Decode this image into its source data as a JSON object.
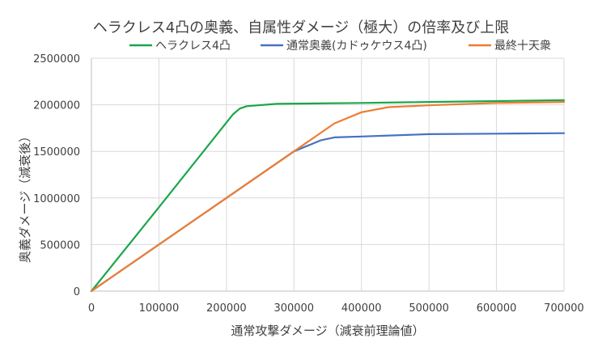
{
  "chart_data": {
    "type": "line",
    "title": "ヘラクレス4凸の奥義、自属性ダメージ（極大）の倍率及び上限",
    "xlabel": "通常攻撃ダメージ（減衰前理論値）",
    "ylabel": "奥義ダメージ（減衰後）",
    "xlim": [
      0,
      700000
    ],
    "ylim": [
      0,
      2500000
    ],
    "x_ticks": [
      0,
      100000,
      200000,
      300000,
      400000,
      500000,
      600000,
      700000
    ],
    "y_ticks": [
      0,
      500000,
      1000000,
      1500000,
      2000000,
      2500000
    ],
    "x_tick_labels": [
      "0",
      "100000",
      "200000",
      "300000",
      "400000",
      "500000",
      "600000",
      "700000"
    ],
    "y_tick_labels": [
      "0",
      "500000",
      "1000000",
      "1500000",
      "2000000",
      "2500000"
    ],
    "grid": "vertical-and-horizontal",
    "legend_position": "top",
    "series": [
      {
        "name": "ヘラクレス4凸",
        "color": "#1aa64a",
        "points": [
          [
            0,
            0
          ],
          [
            100000,
            900000
          ],
          [
            210000,
            1900000
          ],
          [
            220000,
            1960000
          ],
          [
            230000,
            1985000
          ],
          [
            275000,
            2010000
          ],
          [
            400000,
            2020000
          ],
          [
            500000,
            2030000
          ],
          [
            600000,
            2040000
          ],
          [
            700000,
            2050000
          ]
        ]
      },
      {
        "name": "通常奥義(カドゥケウス4凸)",
        "color": "#4472c4",
        "points": [
          [
            0,
            0
          ],
          [
            300000,
            1500000
          ],
          [
            340000,
            1620000
          ],
          [
            360000,
            1650000
          ],
          [
            400000,
            1660000
          ],
          [
            500000,
            1685000
          ],
          [
            600000,
            1690000
          ],
          [
            700000,
            1695000
          ]
        ]
      },
      {
        "name": "最終十天衆",
        "color": "#ed7d31",
        "points": [
          [
            0,
            0
          ],
          [
            300000,
            1500000
          ],
          [
            360000,
            1800000
          ],
          [
            400000,
            1920000
          ],
          [
            440000,
            1975000
          ],
          [
            500000,
            1995000
          ],
          [
            600000,
            2020000
          ],
          [
            700000,
            2030000
          ]
        ]
      }
    ]
  }
}
